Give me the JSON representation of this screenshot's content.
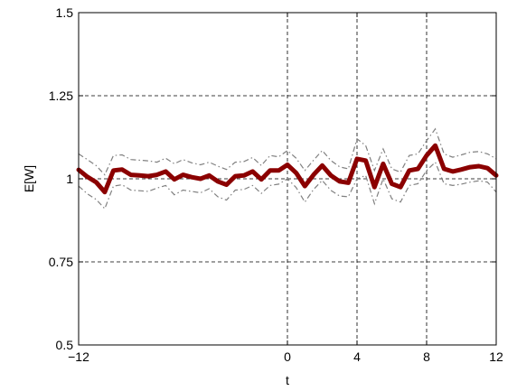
{
  "chart_data": {
    "type": "line",
    "xlabel": "t",
    "ylabel": "E[W]",
    "xlim": [
      -12,
      12
    ],
    "ylim": [
      0.5,
      1.5
    ],
    "grid": "partial-dashed",
    "xticks": [
      -12,
      0,
      4,
      8,
      12
    ],
    "xtick_labels": [
      "−12",
      "0",
      "4",
      "8",
      "12"
    ],
    "yticks": [
      0.5,
      0.75,
      1,
      1.25,
      1.5
    ],
    "ytick_labels": [
      "0.5",
      "0.75",
      "1",
      "1.25",
      "1.5"
    ],
    "vgrid_at": [
      0,
      4,
      8
    ],
    "hgrid_at": [
      0.75,
      1,
      1.25
    ],
    "x": [
      -12,
      -11.5,
      -11,
      -10.5,
      -10,
      -9.5,
      -9,
      -8.5,
      -8,
      -7.5,
      -7,
      -6.5,
      -6,
      -5.5,
      -5,
      -4.5,
      -4,
      -3.5,
      -3,
      -2.5,
      -2,
      -1.5,
      -1,
      -0.5,
      0,
      0.5,
      1,
      1.5,
      2,
      2.5,
      3,
      3.5,
      4,
      4.5,
      5,
      5.5,
      6,
      6.5,
      7,
      7.5,
      8,
      8.5,
      9,
      9.5,
      10,
      10.5,
      11,
      11.5,
      12
    ],
    "series": [
      {
        "role": "mean",
        "color": "#8b0000",
        "style": "solid-thick",
        "values": [
          1.027,
          1.006,
          0.99,
          0.96,
          1.025,
          1.028,
          1.012,
          1.01,
          1.008,
          1.012,
          1.022,
          0.998,
          1.012,
          1.005,
          1.0,
          1.01,
          0.992,
          0.982,
          1.008,
          1.01,
          1.022,
          0.998,
          1.025,
          1.025,
          1.042,
          1.018,
          0.978,
          1.012,
          1.04,
          1.01,
          0.992,
          0.988,
          1.06,
          1.055,
          0.975,
          1.045,
          0.985,
          0.975,
          1.025,
          1.03,
          1.07,
          1.1,
          1.03,
          1.022,
          1.028,
          1.035,
          1.038,
          1.032,
          1.01
        ]
      },
      {
        "role": "upper-band",
        "color": "#808080",
        "style": "dash-dot",
        "values": [
          1.075,
          1.058,
          1.04,
          1.012,
          1.07,
          1.072,
          1.058,
          1.056,
          1.054,
          1.05,
          1.062,
          1.045,
          1.058,
          1.048,
          1.042,
          1.05,
          1.038,
          1.028,
          1.05,
          1.052,
          1.064,
          1.04,
          1.07,
          1.066,
          1.085,
          1.062,
          1.025,
          1.056,
          1.085,
          1.055,
          1.036,
          1.03,
          1.12,
          1.1,
          1.025,
          1.09,
          1.03,
          1.02,
          1.07,
          1.075,
          1.115,
          1.15,
          1.075,
          1.065,
          1.072,
          1.08,
          1.082,
          1.075,
          1.06
        ]
      },
      {
        "role": "lower-band",
        "color": "#808080",
        "style": "dash-dot",
        "values": [
          0.978,
          0.955,
          0.938,
          0.91,
          0.978,
          0.982,
          0.966,
          0.964,
          0.962,
          0.972,
          0.98,
          0.952,
          0.966,
          0.962,
          0.958,
          0.97,
          0.946,
          0.936,
          0.966,
          0.968,
          0.98,
          0.956,
          0.98,
          0.984,
          1.0,
          0.974,
          0.93,
          0.968,
          0.995,
          0.965,
          0.948,
          0.946,
          1.0,
          1.01,
          0.925,
          1.0,
          0.94,
          0.93,
          0.98,
          0.985,
          1.025,
          1.05,
          0.985,
          0.98,
          0.984,
          0.99,
          0.994,
          0.99,
          0.96
        ]
      }
    ]
  }
}
